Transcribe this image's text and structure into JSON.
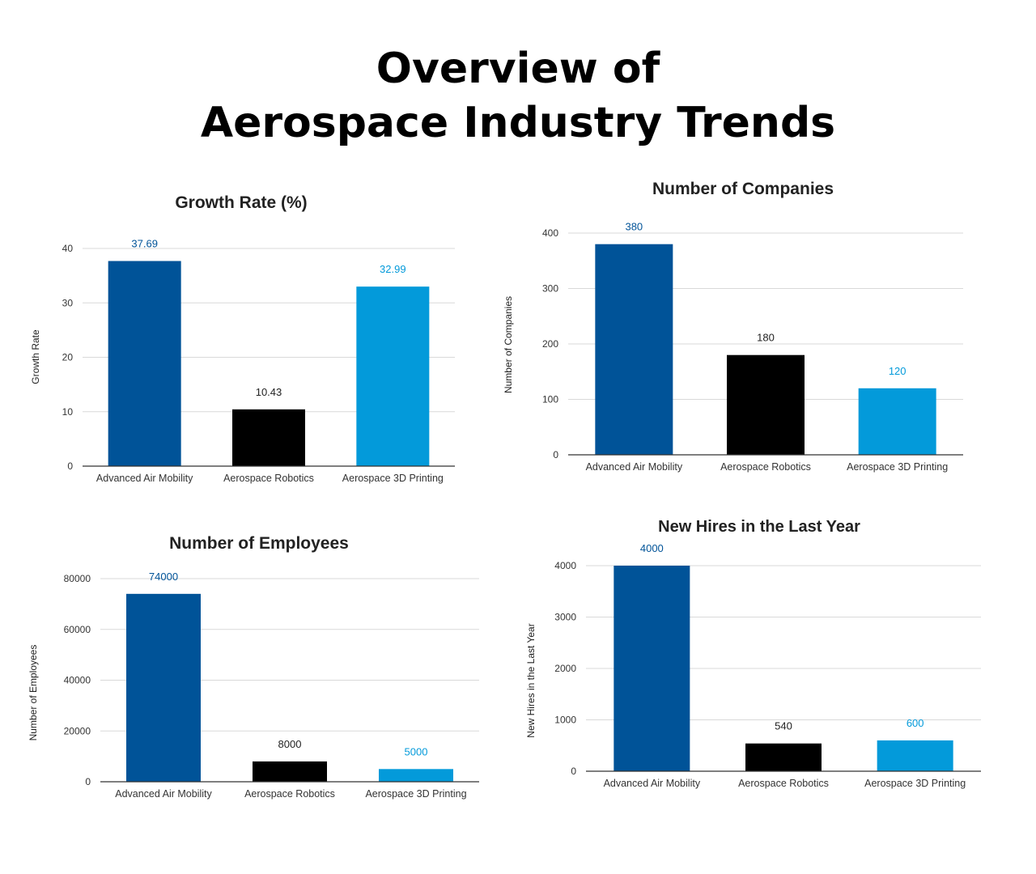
{
  "title_line1": "Overview of",
  "title_line2": "Aerospace Industry Trends",
  "colors": {
    "advanced_air_mobility": "#005398",
    "aerospace_robotics": "#000000",
    "aerospace_3d_printing": "#039ada",
    "grid": "#d9d9d9",
    "axis": "#333333",
    "label_default": "#222222"
  },
  "chart_data": [
    {
      "type": "bar",
      "title": "Growth Rate (%)",
      "xlabel": "",
      "ylabel": "Growth Rate",
      "categories": [
        "Advanced Air Mobility",
        "Aerospace Robotics",
        "Aerospace 3D Printing"
      ],
      "values": [
        37.69,
        10.43,
        32.99
      ],
      "data_labels": [
        "37.69",
        "10.43",
        "32.99"
      ],
      "ylim": [
        0,
        40
      ],
      "yticks": [
        0,
        10,
        20,
        30,
        40
      ],
      "grid": true,
      "legend": "none"
    },
    {
      "type": "bar",
      "title": "Number of Companies",
      "xlabel": "",
      "ylabel": "Number of Companies",
      "categories": [
        "Advanced Air Mobility",
        "Aerospace Robotics",
        "Aerospace 3D Printing"
      ],
      "values": [
        380,
        180,
        120
      ],
      "data_labels": [
        "380",
        "180",
        "120"
      ],
      "ylim": [
        0,
        400
      ],
      "yticks": [
        0,
        100,
        200,
        300,
        400
      ],
      "grid": true,
      "legend": "none"
    },
    {
      "type": "bar",
      "title": "Number of Employees",
      "xlabel": "",
      "ylabel": "Number of Employees",
      "categories": [
        "Advanced Air Mobility",
        "Aerospace Robotics",
        "Aerospace 3D Printing"
      ],
      "values": [
        74000,
        8000,
        5000
      ],
      "data_labels": [
        "74000",
        "8000",
        "5000"
      ],
      "ylim": [
        0,
        80000
      ],
      "yticks": [
        0,
        20000,
        40000,
        60000,
        80000
      ],
      "grid": true,
      "legend": "none"
    },
    {
      "type": "bar",
      "title": "New Hires in the Last Year",
      "xlabel": "",
      "ylabel": "New Hires in the Last Year",
      "categories": [
        "Advanced Air Mobility",
        "Aerospace Robotics",
        "Aerospace 3D Printing"
      ],
      "values": [
        4000,
        540,
        600
      ],
      "data_labels": [
        "4000",
        "540",
        "600"
      ],
      "ylim": [
        0,
        4000
      ],
      "yticks": [
        0,
        1000,
        2000,
        3000,
        4000
      ],
      "grid": true,
      "legend": "none"
    }
  ]
}
